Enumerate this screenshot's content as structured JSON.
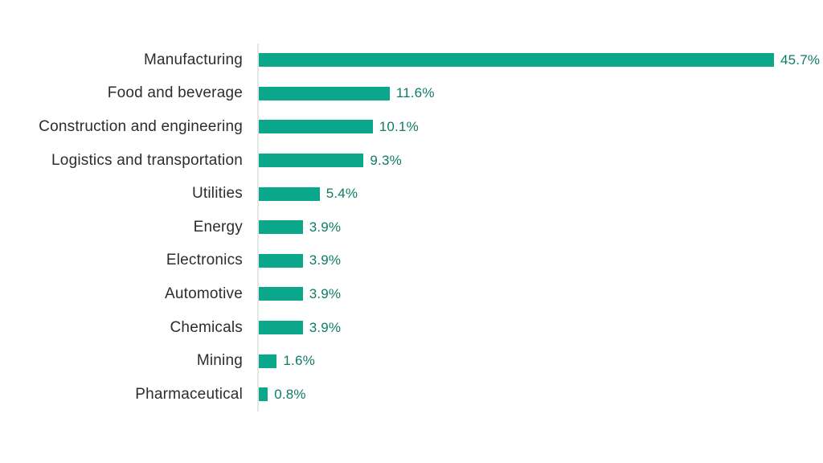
{
  "chart_data": {
    "type": "bar",
    "orientation": "horizontal",
    "title": "",
    "xlabel": "",
    "ylabel": "",
    "categories": [
      "Manufacturing",
      "Food and beverage",
      "Construction and engineering",
      "Logistics and transportation",
      "Utilities",
      "Energy",
      "Electronics",
      "Automotive",
      "Chemicals",
      "Mining",
      "Pharmaceutical"
    ],
    "values": [
      45.7,
      11.6,
      10.1,
      9.3,
      5.4,
      3.9,
      3.9,
      3.9,
      3.9,
      1.6,
      0.8
    ],
    "value_labels": [
      "45.7%",
      "11.6%",
      "10.1%",
      "9.3%",
      "5.4%",
      "3.9%",
      "3.9%",
      "3.9%",
      "3.9%",
      "1.6%",
      "0.8%"
    ],
    "unit": "%",
    "xlim": [
      0,
      45.7
    ],
    "grid": false,
    "legend": false,
    "colors": {
      "bar": "#0ba78a",
      "value_label": "#0e7b66",
      "category_label": "#2b2d2e",
      "axis_line": "#e3e7e6",
      "background": "#ffffff"
    }
  }
}
